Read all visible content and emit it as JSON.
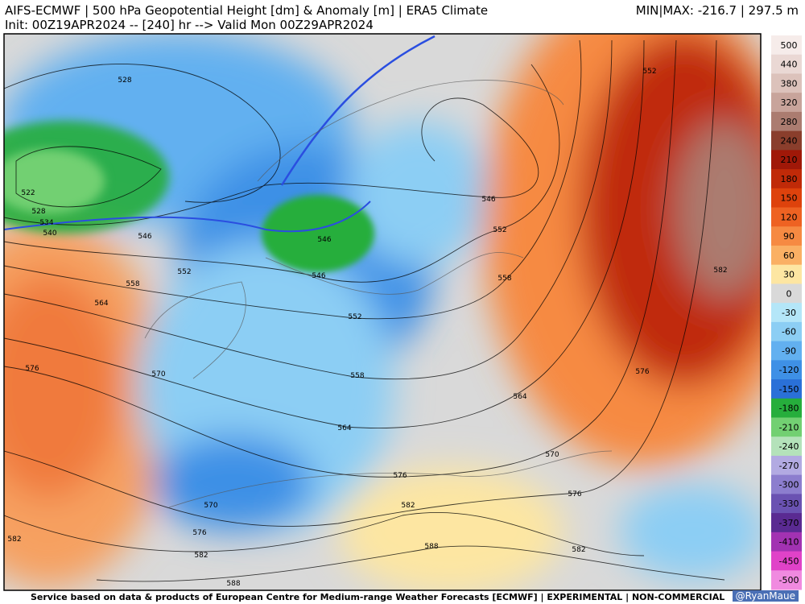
{
  "header": {
    "title": "AIFS-ECMWF | 500 hPa Geopotential Height [dm] & Anomaly [m] | ERA5 Climate",
    "init": "Init: 00Z19APR2024 -- [240] hr --> Valid Mon 00Z29APR2024",
    "minmax": "MIN|MAX: -216.7 | 297.5 m"
  },
  "map": {
    "contour_labels": [
      528,
      522,
      528,
      534,
      540,
      546,
      552,
      558,
      564,
      576,
      570,
      546,
      546,
      552,
      546,
      552,
      558,
      552,
      558,
      564,
      564,
      582,
      576,
      570,
      576,
      576,
      582,
      570,
      576,
      582,
      588,
      582,
      582,
      588
    ]
  },
  "colorbar": {
    "ticks": [
      500,
      440,
      380,
      320,
      280,
      240,
      210,
      180,
      150,
      120,
      90,
      60,
      30,
      0,
      -30,
      -60,
      -90,
      -120,
      -150,
      -180,
      -210,
      -240,
      -270,
      -300,
      -330,
      -370,
      -410,
      -450,
      -500
    ],
    "colors": [
      "#f6ecea",
      "#ead8d4",
      "#dcc2bb",
      "#c8a49b",
      "#ab7c70",
      "#8a3e2c",
      "#a01808",
      "#c02a08",
      "#de420c",
      "#ee6222",
      "#f68a42",
      "#fab064",
      "#fde6a2",
      "#d9d9d9",
      "#b4e6f8",
      "#8ccef4",
      "#62b0f0",
      "#3e90e6",
      "#2a70d8",
      "#26ae3c",
      "#72d072",
      "#b4e2ba",
      "#b2aae2",
      "#8c7ece",
      "#6a52b2",
      "#5a2a92",
      "#a232b2",
      "#e042c8",
      "#f08ae0"
    ]
  },
  "footer": {
    "service": "Service based on data & products of European Centre for Medium-range Weather Forecasts [ECMWF] | EXPERIMENTAL | NON-COMMERCIAL",
    "credit": "@RyanMaue"
  }
}
